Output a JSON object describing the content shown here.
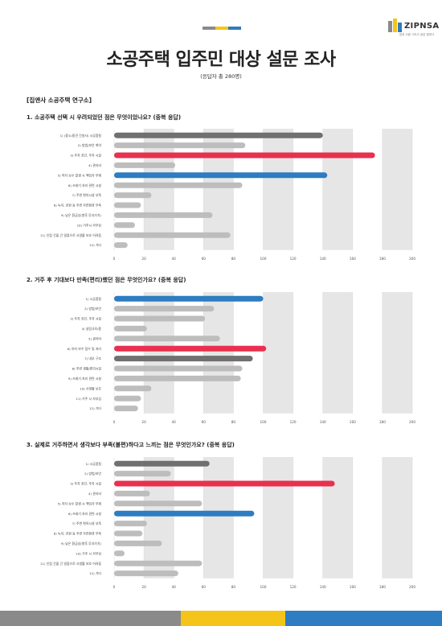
{
  "brand": {
    "name": "ZIPNSA",
    "tagline": "집과 사람 그리고 공감 집앤사",
    "colors": {
      "gray": "#707070",
      "yellow": "#f4c518",
      "blue": "#2e7cc1",
      "red": "#e8304f",
      "light": "#bdbdbd",
      "track": "#e6e6e6"
    }
  },
  "header": {
    "title": "소공주택 입주민 대상 설문 조사",
    "subtitle": "(응답자 총 280명)",
    "source": "[집앤사 소공주택 연구소]"
  },
  "chart_data": [
    {
      "type": "bar",
      "orientation": "horizontal",
      "title": "1. 소공주택 선택 시 우려되었던 점은 무엇이었나요? (중복 응답)",
      "categories": [
        "1) (중소/중견 건설사) 시공품질",
        "2) 방범/보안 취약",
        "3) 주차 공간, 주차 시설",
        "4) 관리비",
        "5) 하자 보수 발생 시 책임자 부재",
        "6) 쓰레기 처리 관련 시설",
        "7) 주변 편의시설 부족",
        "8) 녹지, 공원 등 주변 자연환경 부족",
        "9) 낮은 환금성(향후 투자가치)",
        "10) 거주시 자부심",
        "11) 인접 건물 간 밀접으로 사생활 보호 어려움",
        "12) 기타"
      ],
      "values": [
        140,
        88,
        175,
        41,
        143,
        86,
        25,
        18,
        66,
        14,
        78,
        9
      ],
      "highlight": [
        "gray",
        "light",
        "red",
        "light",
        "blue",
        "light",
        "light",
        "light",
        "light",
        "light",
        "light",
        "light"
      ],
      "xlim": [
        0,
        200
      ],
      "xticks": [
        0,
        20,
        40,
        60,
        80,
        100,
        120,
        140,
        160,
        180,
        200
      ]
    },
    {
      "type": "bar",
      "orientation": "horizontal",
      "title": "2. 거주 후 기대보다 만족(편리)했던 점은 무엇인가요? (중복 응답)",
      "categories": [
        "1) 시공품질",
        "2) 방범/보안",
        "3) 주차 공간, 주차 시설",
        "4) 살림규모/용",
        "5) 관리비",
        "6) 하자 보수 접수 및 처리",
        "7) 내부 구조",
        "8) 주변 생활/편의시설",
        "9) 쓰레기 처리 관련 시설",
        "10) 사생활 보호",
        "11) 거주 시 자부심",
        "12) 기타"
      ],
      "values": [
        100,
        67,
        61,
        22,
        71,
        102,
        93,
        86,
        85,
        25,
        18,
        16
      ],
      "highlight": [
        "blue",
        "light",
        "light",
        "light",
        "light",
        "red",
        "gray",
        "light",
        "light",
        "light",
        "light",
        "light"
      ],
      "xlim": [
        0,
        200
      ],
      "xticks": [
        0,
        20,
        40,
        60,
        80,
        100,
        120,
        140,
        160,
        180,
        200
      ]
    },
    {
      "type": "bar",
      "orientation": "horizontal",
      "title": "3. 실제로 거주하면서 생각보다 부족(불편)하다고 느끼는 점은 무엇인가요? (중복 응답)",
      "categories": [
        "1) 시공품질",
        "2) 방범/보안",
        "3) 주차 공간, 주차 시설",
        "4) 관리비",
        "5) 하자 보수 발생 시 책임자 부재",
        "6) 쓰레기 처리 관련 시설",
        "7) 주변 편의시설 부족",
        "8) 녹지, 공원 등 주변 자연환경 부족",
        "9) 낮은 환금성(향후 투자가치)",
        "10) 거주 시 자부심",
        "11) 인접 건물 간 밀접으로 사생활 보호 어려움",
        "12) 기타"
      ],
      "values": [
        64,
        38,
        148,
        24,
        59,
        94,
        22,
        19,
        32,
        7,
        59,
        43
      ],
      "highlight": [
        "gray",
        "light",
        "red",
        "light",
        "light",
        "blue",
        "light",
        "light",
        "light",
        "light",
        "light",
        "light"
      ],
      "xlim": [
        0,
        200
      ],
      "xticks": [
        0,
        20,
        40,
        60,
        80,
        100,
        120,
        140,
        160,
        180,
        200
      ]
    }
  ]
}
